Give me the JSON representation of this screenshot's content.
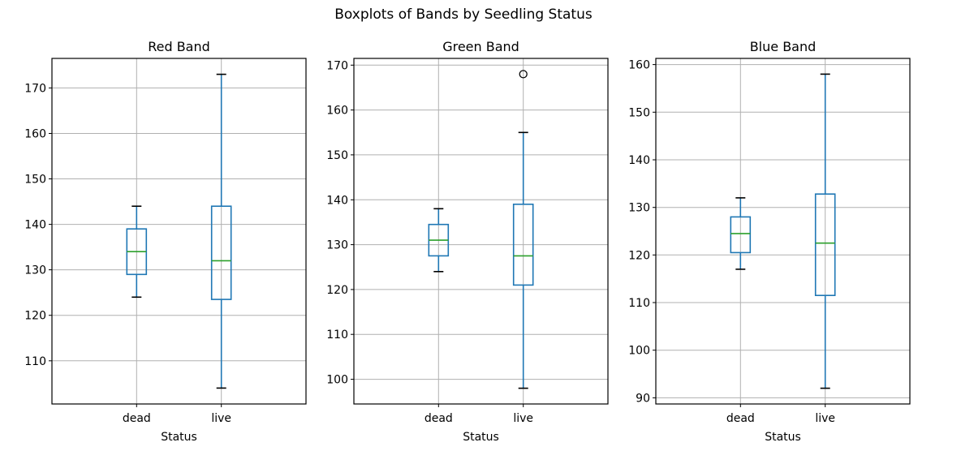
{
  "suptitle": "Boxplots of Bands by Seedling Status",
  "colors": {
    "box": "#1f77b4",
    "median": "#2ca02c",
    "grid": "#b0b0b0",
    "axis": "#000000"
  },
  "chart_data": [
    {
      "type": "boxplot",
      "title": "Red Band",
      "xlabel": "Status",
      "ylabel": "",
      "categories": [
        "dead",
        "live"
      ],
      "ylim": [
        100.5,
        176.5
      ],
      "yticks": [
        110,
        120,
        130,
        140,
        150,
        160,
        170
      ],
      "grid": true,
      "boxes": [
        {
          "category": "dead",
          "whislo": 124,
          "q1": 129,
          "median": 134,
          "q3": 139,
          "whishi": 144,
          "fliers": []
        },
        {
          "category": "live",
          "whislo": 104,
          "q1": 123.5,
          "median": 132,
          "q3": 144,
          "whishi": 173,
          "fliers": []
        }
      ]
    },
    {
      "type": "boxplot",
      "title": "Green Band",
      "xlabel": "Status",
      "ylabel": "",
      "categories": [
        "dead",
        "live"
      ],
      "ylim": [
        94.5,
        171.5
      ],
      "yticks": [
        100,
        110,
        120,
        130,
        140,
        150,
        160,
        170
      ],
      "grid": true,
      "boxes": [
        {
          "category": "dead",
          "whislo": 124,
          "q1": 127.5,
          "median": 131,
          "q3": 134.5,
          "whishi": 138,
          "fliers": []
        },
        {
          "category": "live",
          "whislo": 98,
          "q1": 121,
          "median": 127.5,
          "q3": 139,
          "whishi": 155,
          "fliers": [
            168
          ]
        }
      ]
    },
    {
      "type": "boxplot",
      "title": "Blue Band",
      "xlabel": "Status",
      "ylabel": "",
      "categories": [
        "dead",
        "live"
      ],
      "ylim": [
        88.7,
        161.3
      ],
      "yticks": [
        90,
        100,
        110,
        120,
        130,
        140,
        150,
        160
      ],
      "grid": true,
      "boxes": [
        {
          "category": "dead",
          "whislo": 117,
          "q1": 120.5,
          "median": 124.5,
          "q3": 128,
          "whishi": 132,
          "fliers": []
        },
        {
          "category": "live",
          "whislo": 92,
          "q1": 111.5,
          "median": 122.5,
          "q3": 132.8,
          "whishi": 158,
          "fliers": []
        }
      ]
    }
  ]
}
